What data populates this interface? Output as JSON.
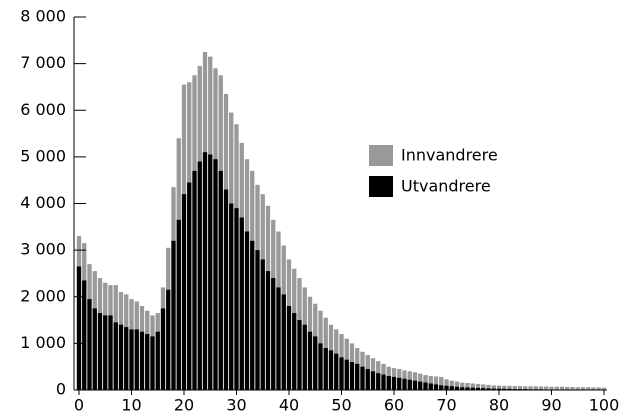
{
  "chart_data": {
    "type": "bar",
    "x": [
      0,
      1,
      2,
      3,
      4,
      5,
      6,
      7,
      8,
      9,
      10,
      11,
      12,
      13,
      14,
      15,
      16,
      17,
      18,
      19,
      20,
      21,
      22,
      23,
      24,
      25,
      26,
      27,
      28,
      29,
      30,
      31,
      32,
      33,
      34,
      35,
      36,
      37,
      38,
      39,
      40,
      41,
      42,
      43,
      44,
      45,
      46,
      47,
      48,
      49,
      50,
      51,
      52,
      53,
      54,
      55,
      56,
      57,
      58,
      59,
      60,
      61,
      62,
      63,
      64,
      65,
      66,
      67,
      68,
      69,
      70,
      71,
      72,
      73,
      74,
      75,
      76,
      77,
      78,
      79,
      80,
      81,
      82,
      83,
      84,
      85,
      86,
      87,
      88,
      89,
      90,
      91,
      92,
      93,
      94,
      95,
      96,
      97,
      98,
      99,
      100
    ],
    "series": [
      {
        "name": "Innvandrere",
        "color": "#999999",
        "values": [
          3300,
          3150,
          2700,
          2550,
          2400,
          2300,
          2250,
          2250,
          2100,
          2050,
          1950,
          1900,
          1800,
          1700,
          1600,
          1650,
          2200,
          3050,
          4350,
          5400,
          6550,
          6600,
          6750,
          6950,
          7250,
          7150,
          6900,
          6750,
          6350,
          5950,
          5700,
          5300,
          4950,
          4700,
          4400,
          4200,
          3950,
          3650,
          3400,
          3100,
          2800,
          2600,
          2400,
          2200,
          2000,
          1850,
          1700,
          1550,
          1400,
          1300,
          1200,
          1100,
          1000,
          900,
          820,
          750,
          680,
          620,
          560,
          500,
          470,
          450,
          420,
          400,
          380,
          350,
          320,
          300,
          290,
          280,
          230,
          200,
          180,
          160,
          150,
          140,
          130,
          120,
          110,
          100,
          95,
          90,
          90,
          85,
          85,
          80,
          80,
          80,
          75,
          75,
          70,
          70,
          70,
          65,
          65,
          60,
          60,
          60,
          55,
          55,
          50
        ]
      },
      {
        "name": "Utvandrere",
        "color": "#000000",
        "values": [
          2650,
          2350,
          1950,
          1750,
          1650,
          1600,
          1600,
          1450,
          1400,
          1350,
          1300,
          1300,
          1250,
          1200,
          1150,
          1250,
          1750,
          2150,
          3200,
          3650,
          4200,
          4450,
          4700,
          4900,
          5100,
          5050,
          4950,
          4700,
          4300,
          4000,
          3900,
          3700,
          3400,
          3200,
          3000,
          2800,
          2550,
          2400,
          2200,
          2050,
          1800,
          1650,
          1500,
          1400,
          1250,
          1150,
          1000,
          900,
          850,
          780,
          700,
          650,
          600,
          560,
          500,
          450,
          400,
          360,
          330,
          300,
          280,
          260,
          240,
          220,
          200,
          180,
          160,
          140,
          120,
          100,
          90,
          80,
          70,
          60,
          55,
          50,
          45,
          40,
          35,
          30,
          30,
          25,
          25,
          20,
          20,
          20,
          15,
          15,
          15,
          10,
          10,
          10,
          10,
          10,
          5,
          5,
          5,
          5,
          5,
          5,
          5
        ]
      }
    ],
    "xlim": [
      0,
      100
    ],
    "xticks": [
      0,
      10,
      20,
      30,
      40,
      50,
      60,
      70,
      80,
      90,
      100
    ],
    "ylim": [
      0,
      8000
    ],
    "yticks": [
      0,
      {
        "value": 1000,
        "label": "1 000"
      },
      {
        "value": 2000,
        "label": "2 000"
      },
      {
        "value": 3000,
        "label": "3 000"
      },
      {
        "value": 4000,
        "label": "4 000"
      },
      {
        "value": 5000,
        "label": "5 000"
      },
      {
        "value": 6000,
        "label": "6 000"
      },
      {
        "value": 7000,
        "label": "7 000"
      },
      {
        "value": 8000,
        "label": "8 000"
      }
    ],
    "overlap": true
  }
}
